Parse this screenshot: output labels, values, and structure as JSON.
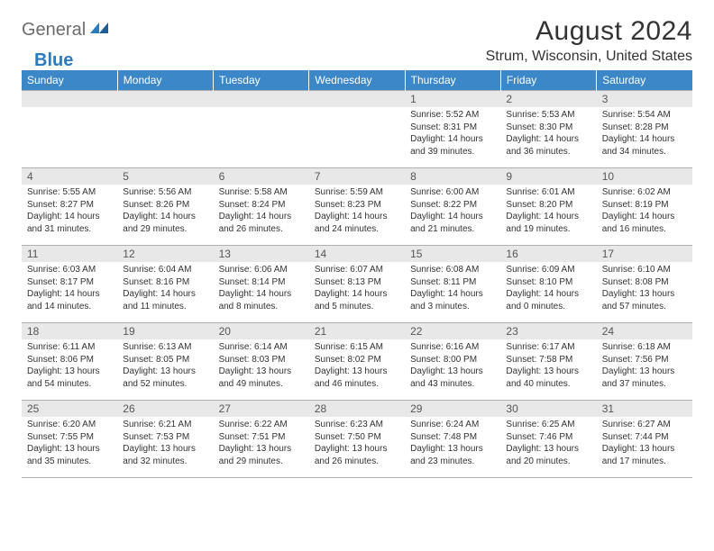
{
  "logo": {
    "text_general": "General",
    "text_blue": "Blue"
  },
  "header": {
    "month_title": "August 2024",
    "location": "Strum, Wisconsin, United States"
  },
  "colors": {
    "header_bg": "#3b87c8",
    "header_text": "#ffffff",
    "daynum_bg": "#e8e8e8",
    "border": "#b0b0b0",
    "logo_gray": "#6c6c6c",
    "logo_blue": "#2b7bbf"
  },
  "weekdays": [
    "Sunday",
    "Monday",
    "Tuesday",
    "Wednesday",
    "Thursday",
    "Friday",
    "Saturday"
  ],
  "weeks": [
    [
      {},
      {},
      {},
      {},
      {
        "num": "1",
        "sunrise": "5:52 AM",
        "sunset": "8:31 PM",
        "daylight": "14 hours and 39 minutes."
      },
      {
        "num": "2",
        "sunrise": "5:53 AM",
        "sunset": "8:30 PM",
        "daylight": "14 hours and 36 minutes."
      },
      {
        "num": "3",
        "sunrise": "5:54 AM",
        "sunset": "8:28 PM",
        "daylight": "14 hours and 34 minutes."
      }
    ],
    [
      {
        "num": "4",
        "sunrise": "5:55 AM",
        "sunset": "8:27 PM",
        "daylight": "14 hours and 31 minutes."
      },
      {
        "num": "5",
        "sunrise": "5:56 AM",
        "sunset": "8:26 PM",
        "daylight": "14 hours and 29 minutes."
      },
      {
        "num": "6",
        "sunrise": "5:58 AM",
        "sunset": "8:24 PM",
        "daylight": "14 hours and 26 minutes."
      },
      {
        "num": "7",
        "sunrise": "5:59 AM",
        "sunset": "8:23 PM",
        "daylight": "14 hours and 24 minutes."
      },
      {
        "num": "8",
        "sunrise": "6:00 AM",
        "sunset": "8:22 PM",
        "daylight": "14 hours and 21 minutes."
      },
      {
        "num": "9",
        "sunrise": "6:01 AM",
        "sunset": "8:20 PM",
        "daylight": "14 hours and 19 minutes."
      },
      {
        "num": "10",
        "sunrise": "6:02 AM",
        "sunset": "8:19 PM",
        "daylight": "14 hours and 16 minutes."
      }
    ],
    [
      {
        "num": "11",
        "sunrise": "6:03 AM",
        "sunset": "8:17 PM",
        "daylight": "14 hours and 14 minutes."
      },
      {
        "num": "12",
        "sunrise": "6:04 AM",
        "sunset": "8:16 PM",
        "daylight": "14 hours and 11 minutes."
      },
      {
        "num": "13",
        "sunrise": "6:06 AM",
        "sunset": "8:14 PM",
        "daylight": "14 hours and 8 minutes."
      },
      {
        "num": "14",
        "sunrise": "6:07 AM",
        "sunset": "8:13 PM",
        "daylight": "14 hours and 5 minutes."
      },
      {
        "num": "15",
        "sunrise": "6:08 AM",
        "sunset": "8:11 PM",
        "daylight": "14 hours and 3 minutes."
      },
      {
        "num": "16",
        "sunrise": "6:09 AM",
        "sunset": "8:10 PM",
        "daylight": "14 hours and 0 minutes."
      },
      {
        "num": "17",
        "sunrise": "6:10 AM",
        "sunset": "8:08 PM",
        "daylight": "13 hours and 57 minutes."
      }
    ],
    [
      {
        "num": "18",
        "sunrise": "6:11 AM",
        "sunset": "8:06 PM",
        "daylight": "13 hours and 54 minutes."
      },
      {
        "num": "19",
        "sunrise": "6:13 AM",
        "sunset": "8:05 PM",
        "daylight": "13 hours and 52 minutes."
      },
      {
        "num": "20",
        "sunrise": "6:14 AM",
        "sunset": "8:03 PM",
        "daylight": "13 hours and 49 minutes."
      },
      {
        "num": "21",
        "sunrise": "6:15 AM",
        "sunset": "8:02 PM",
        "daylight": "13 hours and 46 minutes."
      },
      {
        "num": "22",
        "sunrise": "6:16 AM",
        "sunset": "8:00 PM",
        "daylight": "13 hours and 43 minutes."
      },
      {
        "num": "23",
        "sunrise": "6:17 AM",
        "sunset": "7:58 PM",
        "daylight": "13 hours and 40 minutes."
      },
      {
        "num": "24",
        "sunrise": "6:18 AM",
        "sunset": "7:56 PM",
        "daylight": "13 hours and 37 minutes."
      }
    ],
    [
      {
        "num": "25",
        "sunrise": "6:20 AM",
        "sunset": "7:55 PM",
        "daylight": "13 hours and 35 minutes."
      },
      {
        "num": "26",
        "sunrise": "6:21 AM",
        "sunset": "7:53 PM",
        "daylight": "13 hours and 32 minutes."
      },
      {
        "num": "27",
        "sunrise": "6:22 AM",
        "sunset": "7:51 PM",
        "daylight": "13 hours and 29 minutes."
      },
      {
        "num": "28",
        "sunrise": "6:23 AM",
        "sunset": "7:50 PM",
        "daylight": "13 hours and 26 minutes."
      },
      {
        "num": "29",
        "sunrise": "6:24 AM",
        "sunset": "7:48 PM",
        "daylight": "13 hours and 23 minutes."
      },
      {
        "num": "30",
        "sunrise": "6:25 AM",
        "sunset": "7:46 PM",
        "daylight": "13 hours and 20 minutes."
      },
      {
        "num": "31",
        "sunrise": "6:27 AM",
        "sunset": "7:44 PM",
        "daylight": "13 hours and 17 minutes."
      }
    ]
  ],
  "labels": {
    "sunrise_prefix": "Sunrise: ",
    "sunset_prefix": "Sunset: ",
    "daylight_prefix": "Daylight: "
  }
}
